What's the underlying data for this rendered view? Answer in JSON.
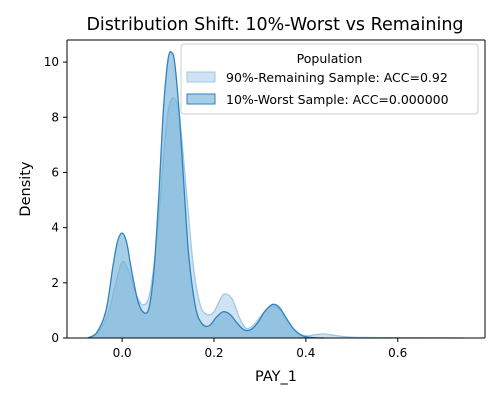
{
  "chart_data": {
    "type": "area",
    "title": "Distribution Shift: 10%-Worst vs Remaining",
    "xlabel": "PAY_1",
    "ylabel": "Density",
    "xlim": [
      -0.12,
      0.79
    ],
    "ylim": [
      0,
      10.8
    ],
    "x_ticks": [
      0.0,
      0.2,
      0.4,
      0.6
    ],
    "x_tick_labels": [
      "0.0",
      "0.2",
      "0.4",
      "0.6"
    ],
    "y_ticks": [
      0,
      2,
      4,
      6,
      8,
      10
    ],
    "y_tick_labels": [
      "0",
      "2",
      "4",
      "6",
      "8",
      "10"
    ],
    "grid": false,
    "legend": {
      "title": "Population",
      "position": "top-right",
      "entries": [
        "90%-Remaining Sample: ACC=0.92",
        "10%-Worst Sample: ACC=0.000000"
      ]
    },
    "series": [
      {
        "name": "90%-Remaining Sample: ACC=0.92",
        "fill_color": "#c6dbef",
        "line_color": "#9ecae1",
        "x": [
          -0.075,
          -0.05,
          -0.03,
          -0.015,
          0.0,
          0.015,
          0.03,
          0.045,
          0.06,
          0.075,
          0.09,
          0.1,
          0.112,
          0.125,
          0.14,
          0.155,
          0.17,
          0.185,
          0.2,
          0.215,
          0.225,
          0.24,
          0.255,
          0.27,
          0.285,
          0.3,
          0.315,
          0.33,
          0.345,
          0.36,
          0.375,
          0.39,
          0.405,
          0.42,
          0.44,
          0.46,
          0.49,
          0.52,
          0.6,
          0.7,
          0.745
        ],
        "y": [
          0.0,
          0.25,
          0.9,
          1.9,
          2.75,
          2.4,
          1.6,
          1.2,
          1.6,
          3.5,
          6.5,
          8.2,
          8.7,
          8.0,
          5.3,
          2.6,
          1.2,
          0.85,
          0.95,
          1.45,
          1.6,
          1.4,
          0.75,
          0.35,
          0.45,
          0.75,
          1.05,
          1.15,
          1.0,
          0.6,
          0.3,
          0.12,
          0.08,
          0.12,
          0.15,
          0.1,
          0.04,
          0.02,
          0.01,
          0.005,
          0.0
        ]
      },
      {
        "name": "10%-Worst Sample: ACC=0.000000",
        "fill_color": "#6baed6",
        "line_color": "#3182bd",
        "x": [
          -0.075,
          -0.055,
          -0.035,
          -0.02,
          -0.01,
          0.0,
          0.01,
          0.02,
          0.035,
          0.05,
          0.06,
          0.07,
          0.08,
          0.09,
          0.1,
          0.108,
          0.115,
          0.125,
          0.135,
          0.145,
          0.16,
          0.175,
          0.19,
          0.205,
          0.22,
          0.235,
          0.25,
          0.265,
          0.28,
          0.295,
          0.31,
          0.325,
          0.335,
          0.345,
          0.36,
          0.375,
          0.39,
          0.405,
          0.42,
          0.44
        ],
        "y": [
          0.0,
          0.2,
          1.0,
          2.6,
          3.5,
          3.8,
          3.45,
          2.5,
          1.3,
          0.9,
          1.2,
          2.6,
          5.2,
          8.3,
          10.1,
          10.35,
          9.9,
          8.0,
          5.4,
          3.0,
          1.1,
          0.5,
          0.45,
          0.75,
          0.95,
          0.85,
          0.55,
          0.3,
          0.3,
          0.55,
          0.95,
          1.2,
          1.2,
          1.05,
          0.65,
          0.3,
          0.1,
          0.03,
          0.01,
          0.0
        ]
      }
    ]
  }
}
